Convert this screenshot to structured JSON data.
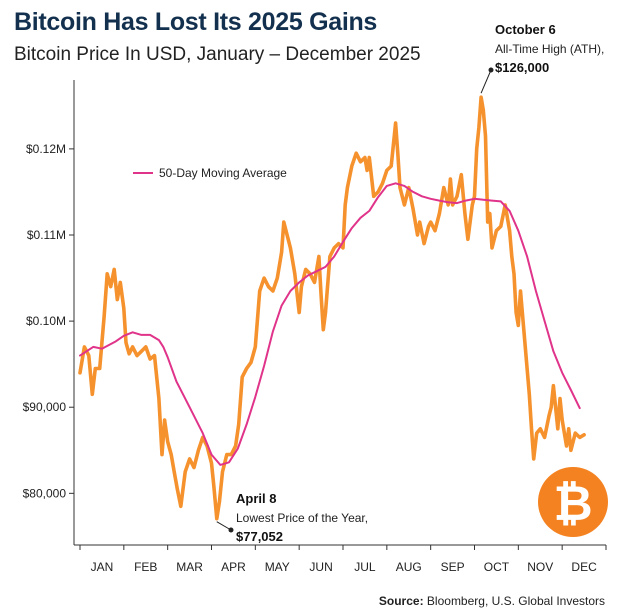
{
  "title": "Bitcoin Has Lost Its 2025 Gains",
  "subtitle": "Bitcoin Price In USD, January – December 2025",
  "source_label": "Source:",
  "source_text": "Bloomberg, U.S. Global Investors",
  "colors": {
    "price": "#f5922e",
    "ma": "#e0338a",
    "title": "#13314f",
    "badge": "#f58220"
  },
  "chart_data": {
    "type": "line",
    "x_categories": [
      "JAN",
      "FEB",
      "MAR",
      "APR",
      "MAY",
      "JUN",
      "JUL",
      "AUG",
      "SEP",
      "OCT",
      "NOV",
      "DEC"
    ],
    "y_ticks": [
      {
        "value": 80000,
        "label": "$80,000"
      },
      {
        "value": 90000,
        "label": "$90,000"
      },
      {
        "value": 100000,
        "label": "$0.10M"
      },
      {
        "value": 110000,
        "label": "$0.11M"
      },
      {
        "value": 120000,
        "label": "$0.12M"
      }
    ],
    "ylim": [
      74000,
      128000
    ],
    "xlim": [
      0,
      12
    ],
    "grid": false,
    "legend": {
      "position": "top-left",
      "entries": [
        "50-Day Moving Average"
      ]
    },
    "series": [
      {
        "name": "",
        "color_key": "price",
        "points": [
          [
            0.0,
            94000
          ],
          [
            0.1,
            97000
          ],
          [
            0.2,
            96000
          ],
          [
            0.28,
            91500
          ],
          [
            0.35,
            94500
          ],
          [
            0.45,
            94500
          ],
          [
            0.55,
            100500
          ],
          [
            0.62,
            105500
          ],
          [
            0.7,
            104000
          ],
          [
            0.78,
            106000
          ],
          [
            0.85,
            102500
          ],
          [
            0.92,
            104500
          ],
          [
            1.0,
            101500
          ],
          [
            1.05,
            97500
          ],
          [
            1.12,
            96200
          ],
          [
            1.2,
            97000
          ],
          [
            1.3,
            96000
          ],
          [
            1.4,
            96500
          ],
          [
            1.5,
            97000
          ],
          [
            1.6,
            95600
          ],
          [
            1.7,
            96000
          ],
          [
            1.8,
            91000
          ],
          [
            1.87,
            84500
          ],
          [
            1.93,
            88500
          ],
          [
            2.0,
            86000
          ],
          [
            2.08,
            84500
          ],
          [
            2.15,
            82500
          ],
          [
            2.22,
            80500
          ],
          [
            2.3,
            78500
          ],
          [
            2.4,
            82500
          ],
          [
            2.5,
            84000
          ],
          [
            2.6,
            83000
          ],
          [
            2.7,
            85000
          ],
          [
            2.8,
            86500
          ],
          [
            2.9,
            85500
          ],
          [
            3.0,
            83500
          ],
          [
            3.05,
            81000
          ],
          [
            3.12,
            77052
          ],
          [
            3.18,
            79000
          ],
          [
            3.25,
            82500
          ],
          [
            3.35,
            84500
          ],
          [
            3.45,
            84500
          ],
          [
            3.55,
            85500
          ],
          [
            3.62,
            88000
          ],
          [
            3.7,
            93500
          ],
          [
            3.8,
            94500
          ],
          [
            3.9,
            95200
          ],
          [
            4.0,
            97000
          ],
          [
            4.1,
            103500
          ],
          [
            4.2,
            105000
          ],
          [
            4.3,
            104000
          ],
          [
            4.4,
            103500
          ],
          [
            4.5,
            105000
          ],
          [
            4.6,
            108000
          ],
          [
            4.65,
            111500
          ],
          [
            4.7,
            110500
          ],
          [
            4.8,
            108500
          ],
          [
            4.9,
            105500
          ],
          [
            5.0,
            101000
          ],
          [
            5.05,
            104000
          ],
          [
            5.15,
            106000
          ],
          [
            5.25,
            105500
          ],
          [
            5.35,
            104500
          ],
          [
            5.45,
            107500
          ],
          [
            5.5,
            103000
          ],
          [
            5.55,
            99000
          ],
          [
            5.6,
            101000
          ],
          [
            5.7,
            107500
          ],
          [
            5.8,
            108500
          ],
          [
            5.9,
            109000
          ],
          [
            6.0,
            108500
          ],
          [
            6.05,
            113500
          ],
          [
            6.1,
            115500
          ],
          [
            6.2,
            118000
          ],
          [
            6.3,
            119500
          ],
          [
            6.4,
            118500
          ],
          [
            6.5,
            119000
          ],
          [
            6.55,
            117500
          ],
          [
            6.6,
            119000
          ],
          [
            6.7,
            114500
          ],
          [
            6.8,
            115000
          ],
          [
            6.9,
            116000
          ],
          [
            7.0,
            117500
          ],
          [
            7.1,
            118000
          ],
          [
            7.2,
            123000
          ],
          [
            7.25,
            119500
          ],
          [
            7.3,
            115500
          ],
          [
            7.4,
            113500
          ],
          [
            7.5,
            115500
          ],
          [
            7.6,
            113000
          ],
          [
            7.7,
            110000
          ],
          [
            7.75,
            111500
          ],
          [
            7.85,
            109000
          ],
          [
            7.95,
            111000
          ],
          [
            8.0,
            111500
          ],
          [
            8.1,
            110500
          ],
          [
            8.2,
            112500
          ],
          [
            8.3,
            115500
          ],
          [
            8.4,
            113500
          ],
          [
            8.45,
            116500
          ],
          [
            8.5,
            113500
          ],
          [
            8.6,
            114500
          ],
          [
            8.7,
            117000
          ],
          [
            8.78,
            112500
          ],
          [
            8.85,
            109500
          ],
          [
            8.95,
            113500
          ],
          [
            9.0,
            114500
          ],
          [
            9.05,
            120000
          ],
          [
            9.1,
            122500
          ],
          [
            9.15,
            126000
          ],
          [
            9.2,
            124500
          ],
          [
            9.25,
            121500
          ],
          [
            9.3,
            111500
          ],
          [
            9.35,
            112500
          ],
          [
            9.4,
            108500
          ],
          [
            9.5,
            110500
          ],
          [
            9.6,
            111000
          ],
          [
            9.7,
            113500
          ],
          [
            9.8,
            110500
          ],
          [
            9.85,
            107500
          ],
          [
            9.9,
            105500
          ],
          [
            9.95,
            101000
          ],
          [
            10.0,
            99500
          ],
          [
            10.05,
            103500
          ],
          [
            10.1,
            100500
          ],
          [
            10.2,
            94500
          ],
          [
            10.25,
            91500
          ],
          [
            10.3,
            87500
          ],
          [
            10.35,
            84000
          ],
          [
            10.42,
            87000
          ],
          [
            10.5,
            87500
          ],
          [
            10.6,
            86500
          ],
          [
            10.7,
            89000
          ],
          [
            10.75,
            90000
          ],
          [
            10.8,
            92500
          ],
          [
            10.85,
            90000
          ],
          [
            10.9,
            87500
          ],
          [
            10.95,
            91000
          ],
          [
            11.0,
            88500
          ],
          [
            11.1,
            85500
          ],
          [
            11.15,
            87500
          ],
          [
            11.2,
            85000
          ],
          [
            11.3,
            87000
          ],
          [
            11.4,
            86500
          ],
          [
            11.5,
            86800
          ]
        ]
      },
      {
        "name": "50-Day Moving Average",
        "color_key": "ma",
        "points": [
          [
            0.0,
            96000
          ],
          [
            0.3,
            97000
          ],
          [
            0.5,
            96800
          ],
          [
            0.8,
            97600
          ],
          [
            1.0,
            98300
          ],
          [
            1.2,
            98700
          ],
          [
            1.4,
            98400
          ],
          [
            1.6,
            98400
          ],
          [
            1.8,
            97800
          ],
          [
            1.9,
            97000
          ],
          [
            2.0,
            95800
          ],
          [
            2.2,
            93000
          ],
          [
            2.5,
            90000
          ],
          [
            2.8,
            87000
          ],
          [
            3.0,
            84500
          ],
          [
            3.2,
            83300
          ],
          [
            3.4,
            83600
          ],
          [
            3.6,
            85200
          ],
          [
            3.8,
            88000
          ],
          [
            4.0,
            91200
          ],
          [
            4.2,
            94800
          ],
          [
            4.4,
            98800
          ],
          [
            4.6,
            101800
          ],
          [
            4.8,
            103500
          ],
          [
            5.0,
            104500
          ],
          [
            5.2,
            105300
          ],
          [
            5.4,
            105800
          ],
          [
            5.6,
            106300
          ],
          [
            5.8,
            107500
          ],
          [
            6.0,
            109200
          ],
          [
            6.2,
            110800
          ],
          [
            6.4,
            112000
          ],
          [
            6.6,
            112800
          ],
          [
            6.8,
            114400
          ],
          [
            7.0,
            115700
          ],
          [
            7.2,
            116000
          ],
          [
            7.4,
            115700
          ],
          [
            7.6,
            115000
          ],
          [
            7.8,
            114500
          ],
          [
            8.0,
            114200
          ],
          [
            8.2,
            114000
          ],
          [
            8.4,
            113800
          ],
          [
            8.6,
            113700
          ],
          [
            8.8,
            114000
          ],
          [
            9.0,
            114200
          ],
          [
            9.2,
            114100
          ],
          [
            9.4,
            114000
          ],
          [
            9.6,
            113900
          ],
          [
            9.8,
            112800
          ],
          [
            10.0,
            110500
          ],
          [
            10.2,
            107500
          ],
          [
            10.4,
            103500
          ],
          [
            10.6,
            100000
          ],
          [
            10.8,
            96500
          ],
          [
            11.0,
            94000
          ],
          [
            11.2,
            92000
          ],
          [
            11.4,
            89900
          ]
        ]
      }
    ],
    "annotations": [
      {
        "date": "October 6",
        "text": "All-Time High (ATH),",
        "value_label": "$126,000",
        "x": 9.15,
        "y": 126000
      },
      {
        "date": "April 8",
        "text": "Lowest Price of the Year,",
        "value_label": "$77,052",
        "x": 3.12,
        "y": 77052
      }
    ]
  }
}
